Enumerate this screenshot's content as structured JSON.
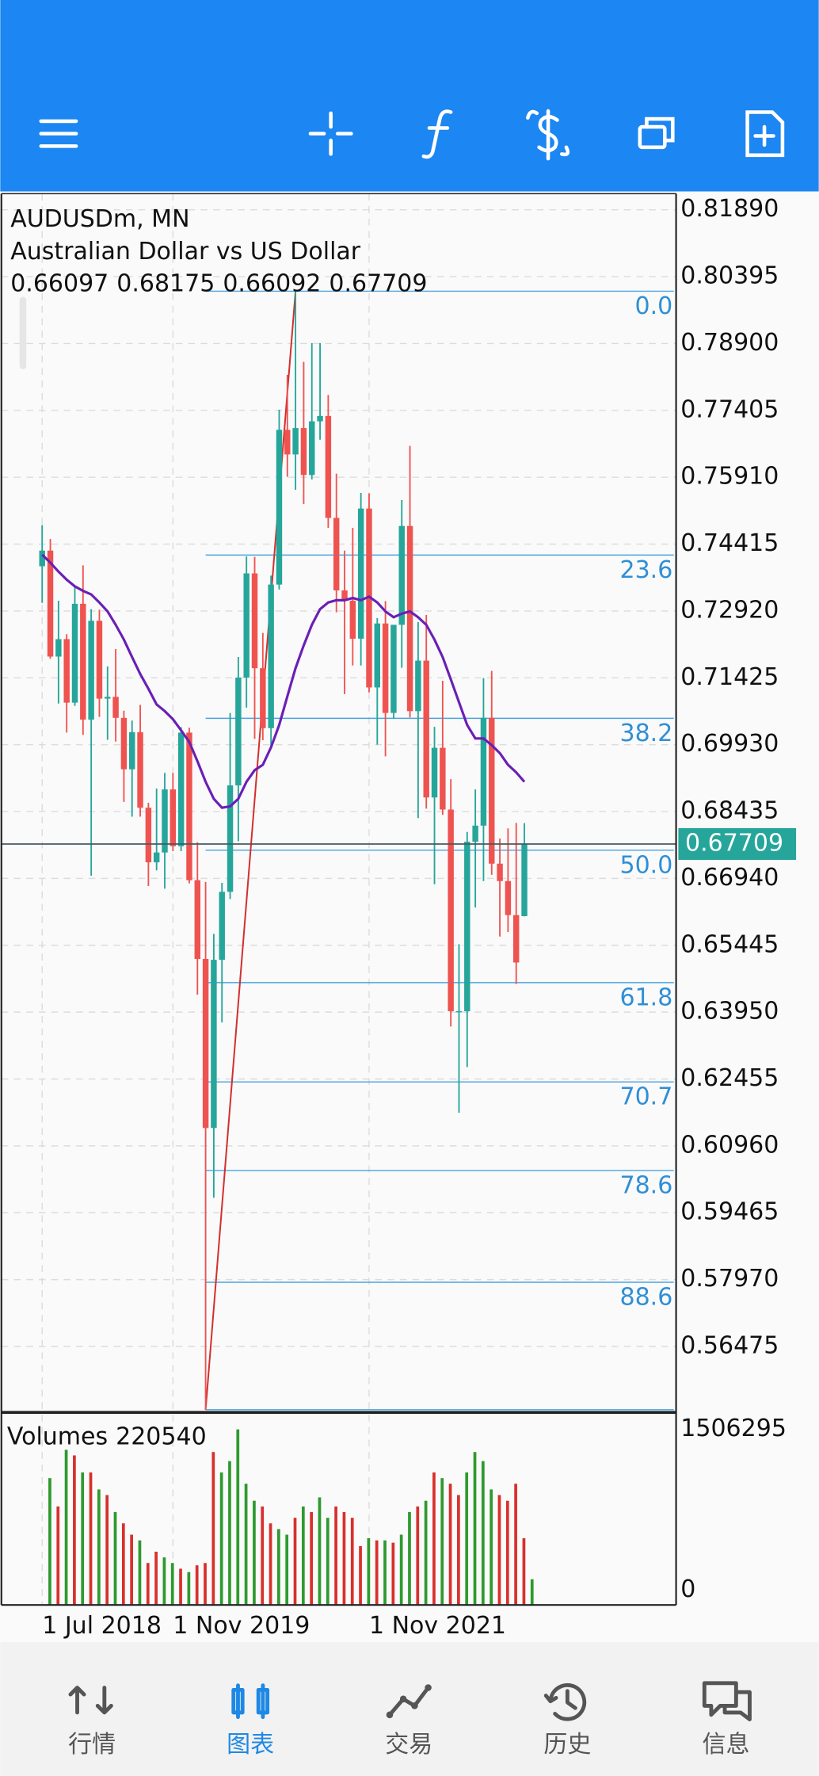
{
  "chart_data": {
    "type": "candlestick",
    "symbol": "AUDUSDm, MN",
    "description": "Australian Dollar vs US Dollar",
    "categories": [
      "1 Jul 2018",
      null,
      null,
      null,
      null,
      null,
      null,
      null,
      null,
      null,
      null,
      null,
      null,
      null,
      null,
      null,
      "1 Nov 2019",
      null,
      null,
      null,
      null,
      null,
      null,
      null,
      null,
      null,
      null,
      null,
      null,
      null,
      null,
      null,
      null,
      null,
      null,
      null,
      null,
      null,
      null,
      null,
      "1 Nov 2021",
      null,
      null,
      null,
      null,
      null,
      null,
      null,
      null,
      null,
      null,
      null,
      null,
      null,
      null,
      null,
      null,
      null,
      null,
      null
    ],
    "open": [
      0.7392,
      0.7427,
      0.719,
      0.7229,
      0.7087,
      0.7308,
      0.7049,
      0.727,
      0.7096,
      0.71,
      0.7053,
      0.6938,
      0.7021,
      0.6852,
      0.673,
      0.6752,
      0.6893,
      0.6766,
      0.702,
      0.669,
      0.6514,
      0.6136,
      0.6512,
      0.6664,
      0.6902,
      0.7143,
      0.7376,
      0.7164,
      0.703,
      0.7351,
      0.7697,
      0.7642,
      0.7701,
      0.7596,
      0.7716,
      0.7728,
      0.75,
      0.7338,
      0.7315,
      0.723,
      0.7521,
      0.7121,
      0.7264,
      0.7064,
      0.7261,
      0.7482,
      0.7068,
      0.7181,
      0.6875,
      0.6986,
      0.6848,
      0.6397,
      0.6397,
      0.6776,
      0.6812,
      0.7053,
      0.6727,
      0.6688,
      0.6612,
      0.66097
    ],
    "high": [
      0.7484,
      0.7453,
      0.7315,
      0.724,
      0.7345,
      0.7394,
      0.7296,
      0.7295,
      0.7168,
      0.7207,
      0.7069,
      0.7047,
      0.7082,
      0.6863,
      0.6895,
      0.693,
      0.693,
      0.7032,
      0.7031,
      0.6775,
      0.6686,
      0.657,
      0.6684,
      0.7064,
      0.7189,
      0.7414,
      0.7413,
      0.7243,
      0.7371,
      0.7742,
      0.782,
      0.8007,
      0.7849,
      0.7891,
      0.7891,
      0.7775,
      0.7599,
      0.7427,
      0.7478,
      0.7556,
      0.7555,
      0.7276,
      0.7314,
      0.7249,
      0.754,
      0.7661,
      0.7267,
      0.7283,
      0.7033,
      0.7136,
      0.6916,
      0.6547,
      0.6798,
      0.6893,
      0.7142,
      0.7158,
      0.6783,
      0.6806,
      0.6818,
      0.68175
    ],
    "low": [
      0.731,
      0.7185,
      0.7085,
      0.702,
      0.708,
      0.7015,
      0.67,
      0.7055,
      0.7004,
      0.7,
      0.6865,
      0.6832,
      0.6832,
      0.6677,
      0.6712,
      0.6671,
      0.6755,
      0.6755,
      0.6683,
      0.6434,
      0.5506,
      0.598,
      0.6372,
      0.6648,
      0.6777,
      0.7076,
      0.7006,
      0.7003,
      0.6991,
      0.734,
      0.7592,
      0.7563,
      0.7531,
      0.7586,
      0.7675,
      0.7478,
      0.7289,
      0.7106,
      0.717,
      0.717,
      0.711,
      0.6993,
      0.6967,
      0.7051,
      0.7165,
      0.7054,
      0.6829,
      0.685,
      0.6681,
      0.6836,
      0.6363,
      0.617,
      0.6272,
      0.6629,
      0.6688,
      0.6702,
      0.6564,
      0.6574,
      0.6458,
      0.66092
    ],
    "close": [
      0.7427,
      0.719,
      0.7229,
      0.7087,
      0.7308,
      0.7049,
      0.727,
      0.7096,
      0.71,
      0.7053,
      0.6938,
      0.7021,
      0.6852,
      0.673,
      0.6752,
      0.6893,
      0.6766,
      0.702,
      0.669,
      0.6514,
      0.6136,
      0.6512,
      0.6664,
      0.6902,
      0.7143,
      0.7376,
      0.7164,
      0.703,
      0.7351,
      0.7697,
      0.7642,
      0.7701,
      0.7596,
      0.7716,
      0.7728,
      0.75,
      0.7338,
      0.7315,
      0.723,
      0.7521,
      0.7121,
      0.7264,
      0.7064,
      0.7261,
      0.7482,
      0.7068,
      0.7181,
      0.6875,
      0.6986,
      0.6848,
      0.6397,
      0.6397,
      0.6776,
      0.6812,
      0.7053,
      0.6727,
      0.6688,
      0.6612,
      0.6506,
      0.67709
    ],
    "up_color": "#26a69a",
    "down_color": "#ef5350",
    "ylim": [
      0.55,
      0.8225
    ],
    "yticks": [
      {
        "value": 0.8189,
        "label": "0.81890"
      },
      {
        "value": 0.80395,
        "label": "0.80395"
      },
      {
        "value": 0.789,
        "label": "0.78900"
      },
      {
        "value": 0.77405,
        "label": "0.77405"
      },
      {
        "value": 0.7591,
        "label": "0.75910"
      },
      {
        "value": 0.74415,
        "label": "0.74415"
      },
      {
        "value": 0.7292,
        "label": "0.72920"
      },
      {
        "value": 0.71425,
        "label": "0.71425"
      },
      {
        "value": 0.6993,
        "label": "0.69930"
      },
      {
        "value": 0.68435,
        "label": "0.68435"
      },
      {
        "value": 0.6694,
        "label": "0.66940"
      },
      {
        "value": 0.65445,
        "label": "0.65445"
      },
      {
        "value": 0.6395,
        "label": "0.63950"
      },
      {
        "value": 0.62455,
        "label": "0.62455"
      },
      {
        "value": 0.6096,
        "label": "0.60960"
      },
      {
        "value": 0.59465,
        "label": "0.59465"
      },
      {
        "value": 0.5797,
        "label": "0.57970"
      },
      {
        "value": 0.56475,
        "label": "0.56475"
      }
    ],
    "grid": true,
    "current_price_color": "#26a69a",
    "moving_average": {
      "color": "#6a1fb5",
      "values": [
        0.7418,
        0.74,
        0.738,
        0.7362,
        0.7347,
        0.7337,
        0.7329,
        0.7311,
        0.7291,
        0.7261,
        0.7228,
        0.7189,
        0.7151,
        0.7118,
        0.7083,
        0.7068,
        0.705,
        0.7025,
        0.6999,
        0.6956,
        0.691,
        0.6872,
        0.6852,
        0.6855,
        0.6872,
        0.691,
        0.6936,
        0.6948,
        0.6987,
        0.7037,
        0.7101,
        0.7164,
        0.7215,
        0.7261,
        0.7296,
        0.7311,
        0.7316,
        0.7316,
        0.7321,
        0.7316,
        0.7324,
        0.7311,
        0.7291,
        0.7278,
        0.7286,
        0.7291,
        0.7278,
        0.7261,
        0.7228,
        0.7189,
        0.7139,
        0.7088,
        0.7037,
        0.7007,
        0.7007,
        0.6992,
        0.6974,
        0.6948,
        0.6931,
        0.691
      ]
    },
    "fibo": {
      "color": "#4aa3df",
      "trend_color": "#d32f2f",
      "from": {
        "index": 20,
        "price": 0.5506
      },
      "to": {
        "index": 31,
        "price": 0.8007
      },
      "levels": [
        {
          "value": 0.8007,
          "label": "0.0"
        },
        {
          "value": 0.7417,
          "label": "23.6"
        },
        {
          "value": 0.7052,
          "label": "38.2"
        },
        {
          "value": 0.6757,
          "label": "50.0"
        },
        {
          "value": 0.6461,
          "label": "61.8"
        },
        {
          "value": 0.6239,
          "label": "70.7"
        },
        {
          "value": 0.6041,
          "label": "78.6"
        },
        {
          "value": 0.5791,
          "label": "88.6"
        },
        {
          "value": 0.5506,
          "label": null
        }
      ]
    },
    "volume": {
      "name": "Volumes",
      "up_color": "#2e9a2e",
      "down_color": "#d8302c",
      "values": [
        1088000,
        845000,
        1331000,
        1283000,
        1137000,
        1137000,
        991000,
        943000,
        797000,
        700000,
        603000,
        554000,
        360000,
        457000,
        408000,
        360000,
        311000,
        282000,
        340000,
        360000,
        1312000,
        1137000,
        1234000,
        1506000,
        1040000,
        894000,
        845000,
        700000,
        651000,
        603000,
        748000,
        845000,
        797000,
        923000,
        748000,
        845000,
        797000,
        748000,
        505000,
        573000,
        554000,
        554000,
        534000,
        603000,
        797000,
        845000,
        894000,
        1137000,
        1088000,
        1040000,
        943000,
        1137000,
        1312000,
        1234000,
        991000,
        943000,
        894000,
        1040000,
        573000,
        220540
      ],
      "ylim": [
        0,
        1642000
      ],
      "yticks": [
        0,
        1506295
      ]
    }
  },
  "tabs": {
    "items": [
      "行情",
      "图表",
      "交易",
      "历史",
      "信息"
    ],
    "active": 1
  }
}
